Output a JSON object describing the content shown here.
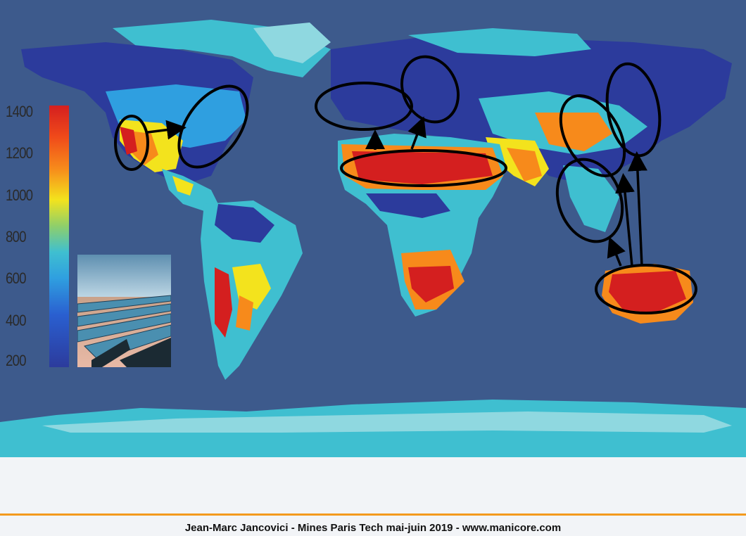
{
  "legend": {
    "ticks": [
      "1400",
      "1200",
      "1000",
      "800",
      "600",
      "400",
      "200"
    ],
    "colors": [
      "#d41f1f",
      "#f78a1b",
      "#f3e31d",
      "#8fcf6a",
      "#3fbfd0",
      "#2a5fd0",
      "#2c3b9c"
    ]
  },
  "map": {
    "ocean_color": "#3d5a8c",
    "annotations": [
      "North America arrow",
      "Sahara arrows to Europe",
      "Australia arrows to Asia"
    ]
  },
  "photo": {
    "subject": "solar-mirror-field"
  },
  "footer": {
    "credit": "Jean-Marc Jancovici - Mines Paris Tech mai-juin 2019 - www.manicore.com"
  },
  "accent_color": "#f39a1e"
}
